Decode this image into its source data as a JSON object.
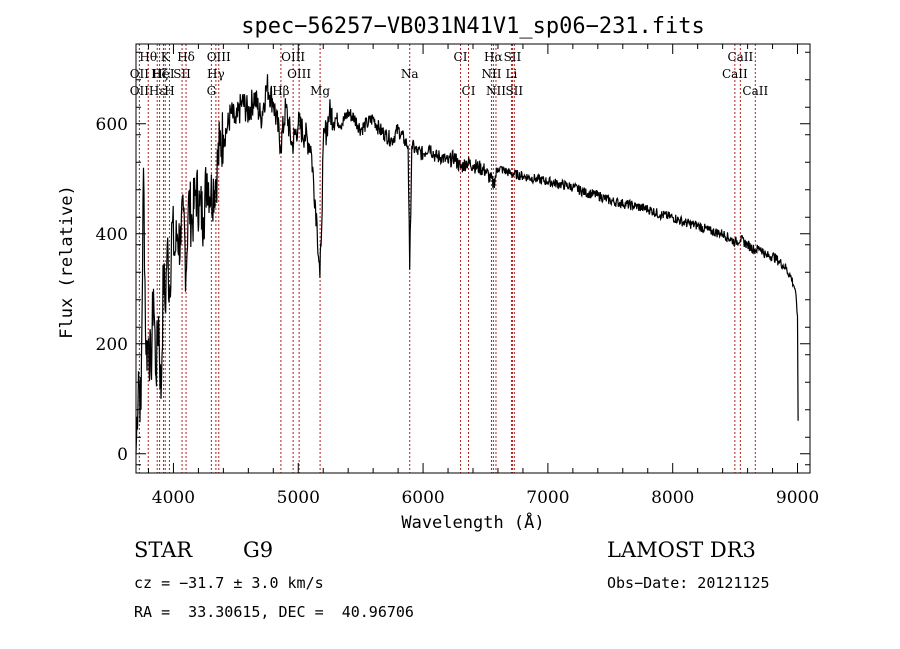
{
  "chart_data": {
    "type": "line",
    "title": "spec−56257−VB031N41V1_sp06−231.fits",
    "xlabel": "Wavelength (Å)",
    "ylabel": "Flux (relative)",
    "xlim": [
      3700,
      9100
    ],
    "ylim": [
      -35,
      745
    ],
    "x_ticks": [
      4000,
      5000,
      6000,
      7000,
      8000,
      9000
    ],
    "x_tick_labels": [
      "4000",
      "5000",
      "6000",
      "7000",
      "8000",
      "9000"
    ],
    "y_ticks": [
      0,
      200,
      400,
      600
    ],
    "y_tick_labels": [
      "0",
      "200",
      "400",
      "600"
    ],
    "series": [
      {
        "name": "flux",
        "x": [
          3700,
          3720,
          3740,
          3760,
          3780,
          3800,
          3820,
          3840,
          3860,
          3880,
          3900,
          3920,
          3934,
          3950,
          3968,
          3990,
          4010,
          4030,
          4060,
          4080,
          4101,
          4120,
          4150,
          4180,
          4210,
          4240,
          4270,
          4300,
          4340,
          4370,
          4400,
          4430,
          4460,
          4500,
          4550,
          4600,
          4650,
          4700,
          4750,
          4800,
          4861,
          4900,
          4950,
          5000,
          5050,
          5100,
          5150,
          5173,
          5183,
          5200,
          5250,
          5300,
          5350,
          5400,
          5450,
          5500,
          5550,
          5600,
          5650,
          5700,
          5750,
          5800,
          5850,
          5880,
          5893,
          5910,
          5950,
          6000,
          6050,
          6100,
          6150,
          6200,
          6250,
          6300,
          6350,
          6400,
          6450,
          6500,
          6563,
          6600,
          6700,
          6800,
          6900,
          7000,
          7100,
          7200,
          7300,
          7400,
          7500,
          7600,
          7700,
          7800,
          7900,
          8000,
          8100,
          8200,
          8300,
          8400,
          8498,
          8542,
          8600,
          8662,
          8700,
          8750,
          8800,
          8850,
          8900,
          8950,
          8980,
          9000,
          9005
        ],
        "y": [
          0,
          150,
          80,
          520,
          180,
          210,
          150,
          300,
          140,
          250,
          100,
          340,
          260,
          380,
          290,
          420,
          360,
          400,
          380,
          440,
          330,
          460,
          420,
          480,
          450,
          430,
          510,
          470,
          500,
          560,
          580,
          590,
          620,
          600,
          640,
          620,
          650,
          610,
          670,
          640,
          560,
          630,
          560,
          600,
          580,
          560,
          420,
          320,
          380,
          560,
          620,
          610,
          600,
          620,
          610,
          590,
          600,
          610,
          590,
          580,
          570,
          590,
          570,
          560,
          335,
          560,
          550,
          545,
          560,
          540,
          540,
          530,
          540,
          520,
          530,
          525,
          520,
          515,
          490,
          520,
          510,
          505,
          500,
          495,
          490,
          485,
          475,
          470,
          460,
          455,
          450,
          445,
          435,
          430,
          420,
          415,
          405,
          400,
          385,
          390,
          380,
          370,
          375,
          360,
          360,
          350,
          340,
          320,
          300,
          250,
          60
        ]
      }
    ],
    "spectral_lines": [
      {
        "label": "Hθ",
        "wavelength": 3798,
        "row": 1
      },
      {
        "label": "K",
        "wavelength": 3934,
        "row": 1
      },
      {
        "label": "Hδ",
        "wavelength": 4101,
        "row": 1
      },
      {
        "label": "OIII",
        "wavelength": 4363,
        "row": 1
      },
      {
        "label": "OIII",
        "wavelength": 4959,
        "row": 1
      },
      {
        "label": "CI",
        "wavelength": 6300,
        "row": 1
      },
      {
        "label": "Hα",
        "wavelength": 6563,
        "row": 1
      },
      {
        "label": "SII",
        "wavelength": 6716,
        "row": 1
      },
      {
        "label": "CaII",
        "wavelength": 8542,
        "row": 1
      },
      {
        "label": "OII",
        "wavelength": 3727,
        "row": 2
      },
      {
        "label": "Hζ",
        "wavelength": 3889,
        "row": 2
      },
      {
        "label": "HeI",
        "wavelength": 3920,
        "row": 2
      },
      {
        "label": "SII",
        "wavelength": 4069,
        "row": 2
      },
      {
        "label": "Hγ",
        "wavelength": 4340,
        "row": 2
      },
      {
        "label": "OIII",
        "wavelength": 5007,
        "row": 2
      },
      {
        "label": "Na",
        "wavelength": 5893,
        "row": 2
      },
      {
        "label": "NII",
        "wavelength": 6548,
        "row": 2
      },
      {
        "label": "Li",
        "wavelength": 6708,
        "row": 2
      },
      {
        "label": "CaII",
        "wavelength": 8498,
        "row": 2
      },
      {
        "label": "OII",
        "wavelength": 3727,
        "row": 3
      },
      {
        "label": "Hε",
        "wavelength": 3870,
        "row": 3
      },
      {
        "label": "H",
        "wavelength": 3968,
        "row": 3
      },
      {
        "label": "G",
        "wavelength": 4304,
        "row": 3
      },
      {
        "label": "Hβ",
        "wavelength": 4861,
        "row": 3
      },
      {
        "label": "Mg",
        "wavelength": 5175,
        "row": 3
      },
      {
        "label": "CI",
        "wavelength": 6364,
        "row": 3
      },
      {
        "label": "NII",
        "wavelength": 6584,
        "row": 3
      },
      {
        "label": "SII",
        "wavelength": 6731,
        "row": 3
      },
      {
        "label": "CaII",
        "wavelength": 8662,
        "row": 3
      }
    ],
    "line_colors": {
      "spectrum": "#000000",
      "markers": "#b02020"
    }
  },
  "info": {
    "object_class": "STAR",
    "subclass": "G9",
    "survey": "LAMOST DR3",
    "redshift": "cz = −31.7 ± 3.0 km/s",
    "obs_date": "Obs−Date: 20121125",
    "coords": "RA =  33.30615, DEC =  40.96706"
  }
}
